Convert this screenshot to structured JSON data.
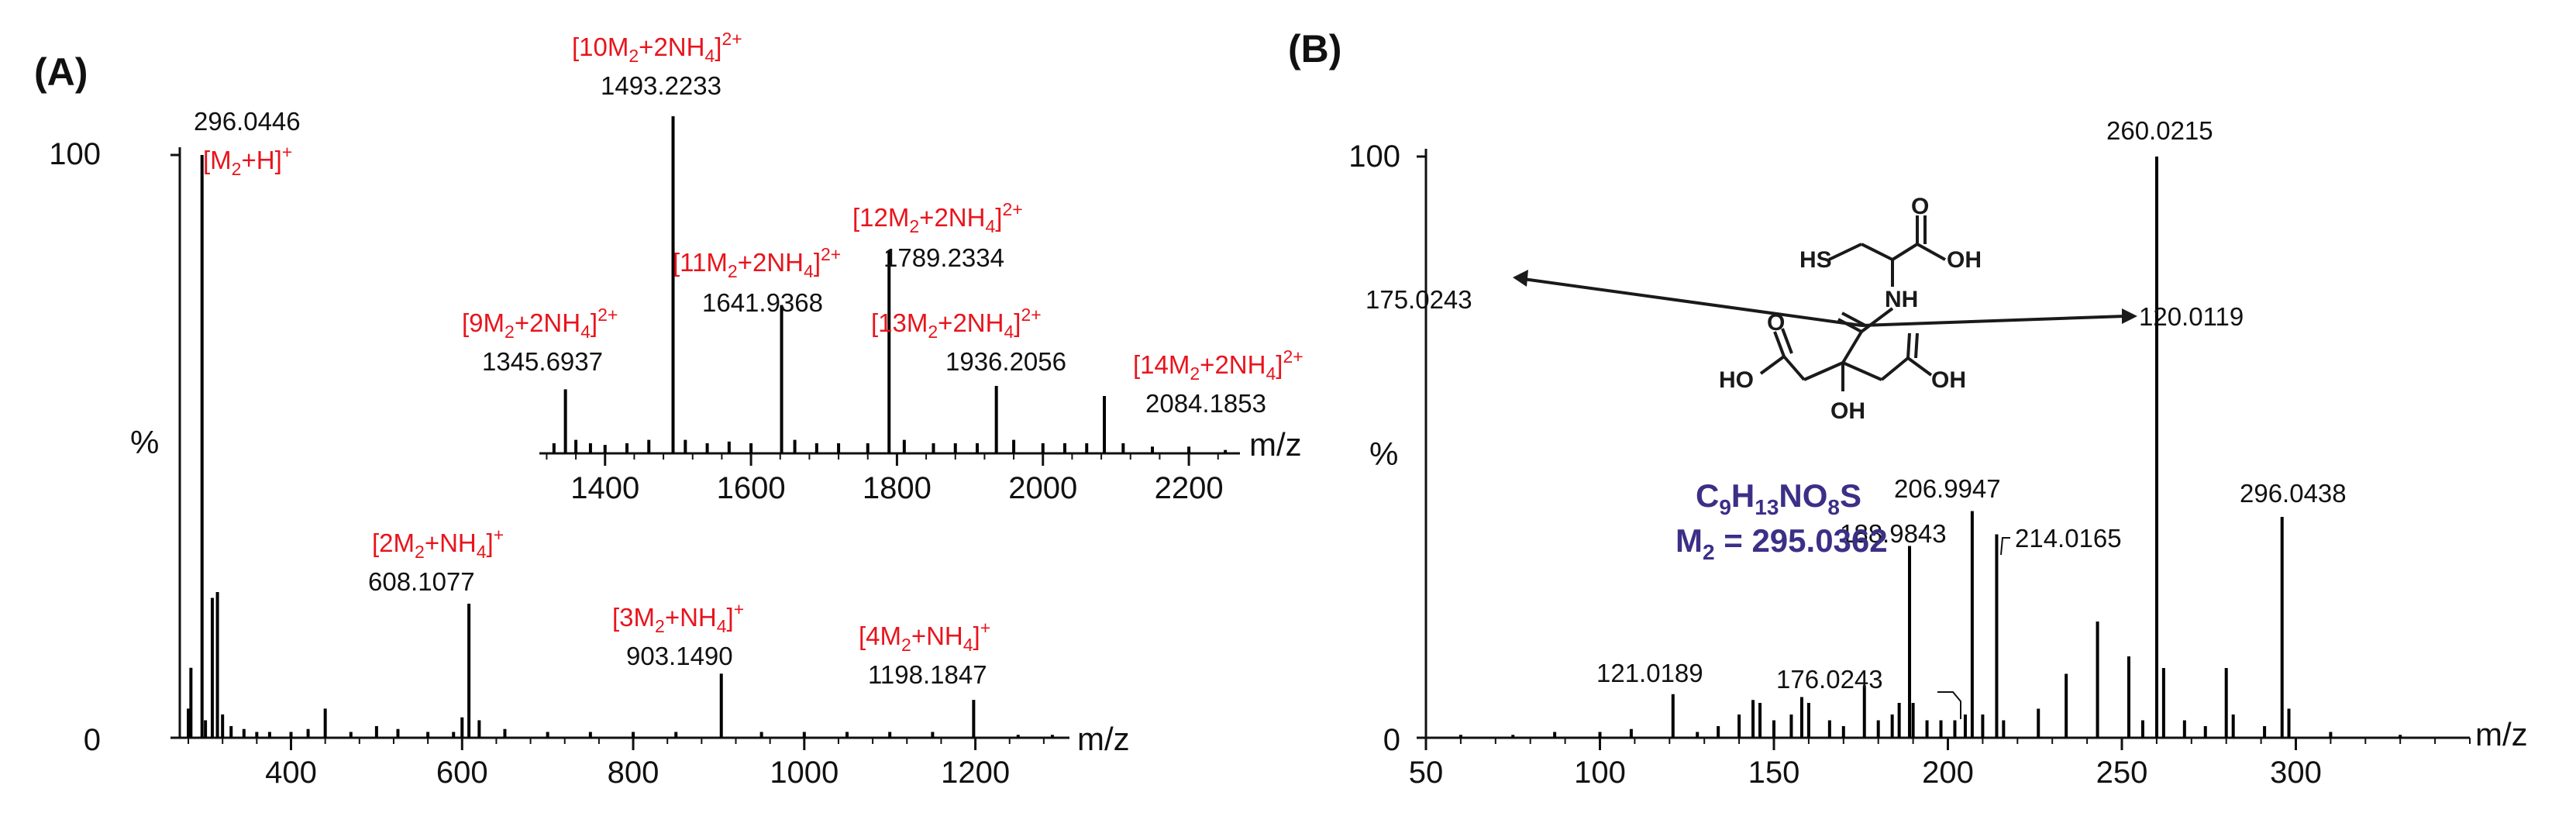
{
  "chart_data": [
    {
      "type": "bar",
      "panel_label": "(A)",
      "xlabel": "m/z",
      "ylabel": "%",
      "ylim": [
        0,
        100
      ],
      "xlim": [
        270,
        1310
      ],
      "yticks": [
        "0",
        "100"
      ],
      "xticks": [
        400,
        600,
        800,
        1000,
        1200
      ],
      "x": [
        280,
        283,
        296,
        300,
        308,
        314,
        320,
        330,
        345,
        360,
        375,
        400,
        420,
        440,
        470,
        500,
        525,
        560,
        590,
        600,
        608,
        620,
        650,
        700,
        750,
        800,
        850,
        903,
        950,
        1000,
        1050,
        1100,
        1150,
        1198,
        1250,
        1290
      ],
      "values": [
        5,
        12,
        100,
        3,
        24,
        25,
        4,
        2,
        1.5,
        1,
        1,
        1,
        1.5,
        5,
        1,
        2,
        1.5,
        1,
        1,
        3.5,
        23,
        3,
        1.5,
        1,
        1,
        1,
        1,
        11,
        1,
        1,
        1,
        1,
        1,
        6.5,
        0.5,
        0.5
      ],
      "peak_labels": [
        {
          "mz": "296.0446",
          "ion": "[M₂+H]⁺"
        },
        {
          "mz": "608.1077",
          "ion": "[2M₂+NH₄]⁺"
        },
        {
          "mz": "903.1490",
          "ion": "[3M₂+NH₄]⁺"
        },
        {
          "mz": "1198.1847",
          "ion": "[4M₂+NH₄]⁺"
        }
      ]
    },
    {
      "type": "bar",
      "panel_label": "inset",
      "xlabel": "m/z",
      "ylabel": "",
      "ylim": [
        0,
        100
      ],
      "xlim": [
        1310,
        2270
      ],
      "xticks": [
        1400,
        1600,
        1800,
        2000,
        2200
      ],
      "x": [
        1330,
        1345.7,
        1360,
        1380,
        1400,
        1430,
        1460,
        1493.2,
        1510,
        1540,
        1570,
        1600,
        1641.9,
        1660,
        1690,
        1720,
        1760,
        1789.2,
        1810,
        1850,
        1880,
        1910,
        1936.2,
        1960,
        2000,
        2030,
        2060,
        2084.2,
        2110,
        2150,
        2200,
        2250
      ],
      "values": [
        3,
        19,
        4,
        3,
        2.5,
        3,
        4,
        100,
        4,
        3,
        3.5,
        3,
        44,
        4,
        3,
        3,
        3,
        60,
        4,
        3,
        3,
        3,
        20,
        4,
        3,
        3,
        3,
        17,
        3,
        2,
        2,
        1
      ],
      "peak_labels": [
        {
          "mz": "1345.6937",
          "ion": "[9M₂+2NH₄]²⁺"
        },
        {
          "mz": "1493.2233",
          "ion": "[10M₂+2NH₄]²⁺"
        },
        {
          "mz": "1641.9368",
          "ion": "[11M₂+2NH₄]²⁺"
        },
        {
          "mz": "1789.2334",
          "ion": "[12M₂+2NH₄]²⁺"
        },
        {
          "mz": "1936.2056",
          "ion": "[13M₂+2NH₄]²⁺"
        },
        {
          "mz": "2084.1853",
          "ion": "[14M₂+2NH₄]²⁺"
        }
      ]
    },
    {
      "type": "bar",
      "panel_label": "(B)",
      "xlabel": "m/z",
      "ylabel": "%",
      "ylim": [
        0,
        100
      ],
      "xlim": [
        50,
        350
      ],
      "yticks": [
        "0",
        "100"
      ],
      "xticks": [
        50,
        100,
        150,
        200,
        250,
        300
      ],
      "x": [
        60,
        75,
        87,
        100,
        109,
        121.0,
        128,
        134,
        140,
        144,
        146,
        150,
        155,
        158,
        160,
        166,
        170,
        176.0,
        180,
        184,
        186,
        188.98,
        190,
        194,
        198,
        202,
        205,
        206.99,
        210,
        214.02,
        216,
        226,
        234,
        243,
        252,
        256,
        260.02,
        262,
        268,
        274,
        280,
        282,
        291,
        296.04,
        298,
        310,
        330
      ],
      "values": [
        0.5,
        0.5,
        1,
        1,
        1.5,
        7.5,
        1,
        2,
        4,
        6.5,
        6,
        3,
        4,
        7,
        6,
        3,
        2,
        9,
        3,
        4,
        6,
        33,
        6,
        3,
        3,
        3,
        4,
        39,
        4,
        35,
        3,
        5,
        11,
        20,
        14,
        3,
        100,
        12,
        3,
        2,
        12,
        4,
        2,
        38,
        5,
        1,
        0.5
      ],
      "peak_labels": [
        {
          "mz": "121.0189"
        },
        {
          "mz": "176.0243"
        },
        {
          "mz": "188.9843"
        },
        {
          "mz": "206.9947"
        },
        {
          "mz": "214.0165"
        },
        {
          "mz": "260.0215"
        },
        {
          "mz": "296.0438"
        }
      ],
      "structure": {
        "formula_main": "C",
        "formula_sub1": "9",
        "formula_mid": "H",
        "formula_sub2": "13",
        "formula_tail": "NO",
        "formula_sub3": "8",
        "formula_end": "S",
        "mass_label": "M",
        "mass_sub": "2",
        "mass_value": " = 295.0362",
        "fragment_left": "175.0243",
        "fragment_right": "120.0119",
        "atoms": [
          "HS",
          "NH",
          "OH",
          "O",
          "O",
          "HO",
          "OH",
          "OH"
        ]
      }
    }
  ],
  "colors": {
    "axis": "#111111",
    "bars": "#000000",
    "ion_label": "#e8141c",
    "formula": "#3b2f86",
    "structure": "#1a1a1a"
  }
}
